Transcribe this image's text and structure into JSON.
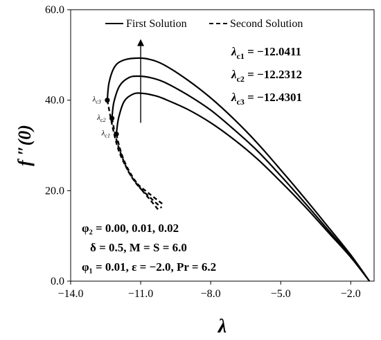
{
  "chart_data": {
    "type": "line",
    "xlabel": "λ",
    "ylabel": "f ″(0)",
    "xlim": [
      -14.0,
      -1.0
    ],
    "ylim": [
      0.0,
      60.0
    ],
    "xticks": [
      -14.0,
      -11.0,
      -8.0,
      -5.0,
      -2.0
    ],
    "xtick_labels": [
      "−14.0",
      "−11.0",
      "−8.0",
      "−5.0",
      "−2.0"
    ],
    "yticks": [
      0.0,
      20.0,
      40.0,
      60.0
    ],
    "ytick_labels": [
      "0.0",
      "20.0",
      "40.0",
      "60.0"
    ],
    "grid": false,
    "legend": {
      "placement": "top",
      "entries": [
        {
          "label": "First Solution",
          "style": "solid"
        },
        {
          "label": "Second Solution",
          "style": "dashed"
        }
      ]
    },
    "series": [
      {
        "style": "solid",
        "x": [
          -12.2312,
          -12.15,
          -11.9,
          -11.5,
          -11.1,
          -10.6,
          -10.0,
          -9.0,
          -8.0,
          -7.0,
          -6.0,
          -5.0,
          -4.0,
          -3.0,
          -2.0,
          -1.2
        ],
        "y": [
          36.0,
          39.5,
          43.2,
          45.0,
          45.3,
          45.0,
          44.0,
          41.2,
          37.8,
          33.5,
          28.8,
          23.3,
          17.5,
          11.5,
          5.5,
          0.0
        ]
      },
      {
        "style": "solid",
        "x": [
          -12.4301,
          -12.35,
          -12.1,
          -11.7,
          -11.1,
          -10.6,
          -10.0,
          -9.0,
          -8.0,
          -7.0,
          -6.0,
          -5.0,
          -4.0,
          -3.0,
          -2.0,
          -1.2
        ],
        "y": [
          40.0,
          44.0,
          47.5,
          48.9,
          49.3,
          49.0,
          47.8,
          44.5,
          40.5,
          35.8,
          30.5,
          24.6,
          18.5,
          12.2,
          5.8,
          0.0
        ]
      },
      {
        "style": "solid",
        "x": [
          -12.0411,
          -11.95,
          -11.7,
          -11.3,
          -10.9,
          -10.4,
          -10.0,
          -9.0,
          -8.0,
          -7.0,
          -6.0,
          -5.0,
          -4.0,
          -3.0,
          -2.0,
          -1.2
        ],
        "y": [
          32.5,
          36.0,
          39.8,
          41.4,
          41.5,
          41.0,
          40.3,
          38.0,
          35.0,
          31.3,
          27.0,
          22.0,
          16.7,
          11.0,
          5.3,
          0.0
        ]
      },
      {
        "style": "dashed",
        "x": [
          -12.0411,
          -11.9,
          -11.7,
          -11.4,
          -11.0,
          -10.6,
          -10.2
        ],
        "y": [
          32.5,
          29.5,
          26.5,
          23.5,
          20.5,
          18.0,
          15.5
        ]
      },
      {
        "style": "dashed",
        "x": [
          -12.2312,
          -12.05,
          -11.8,
          -11.5,
          -11.1,
          -10.6,
          -10.1
        ],
        "y": [
          36.0,
          31.5,
          27.5,
          24.0,
          21.0,
          18.5,
          16.2
        ]
      },
      {
        "style": "dashed",
        "x": [
          -12.4301,
          -12.2,
          -11.95,
          -11.6,
          -11.2,
          -10.6,
          -10.0
        ],
        "y": [
          40.0,
          34.0,
          29.0,
          25.0,
          21.8,
          19.2,
          16.8
        ]
      }
    ],
    "markers": [
      {
        "x": -12.4301,
        "y": 40.0,
        "label_main": "λ",
        "label_sub": "c3"
      },
      {
        "x": -12.2312,
        "y": 36.0,
        "label_main": "λ",
        "label_sub": "c2"
      },
      {
        "x": -12.0411,
        "y": 32.5,
        "label_main": "λ",
        "label_sub": "c1"
      }
    ],
    "arrow": {
      "x": -11.0,
      "from_y": 35.0,
      "to_y": 53.5
    },
    "annotations_top": [
      {
        "sym": "λ",
        "sub": "c1",
        "value": " = −12.0411"
      },
      {
        "sym": "λ",
        "sub": "c2",
        "value": " = −12.2312"
      },
      {
        "sym": "λ",
        "sub": "c3",
        "value": " = −12.4301"
      }
    ],
    "annotations_bottom": [
      {
        "text": "φ₂ = 0.00, 0.01, 0.02"
      },
      {
        "text": "δ = 0.5, M = S = 6.0"
      },
      {
        "text": "φ₁ = 0.01, ε = −2.0, Pr = 6.2"
      }
    ]
  }
}
